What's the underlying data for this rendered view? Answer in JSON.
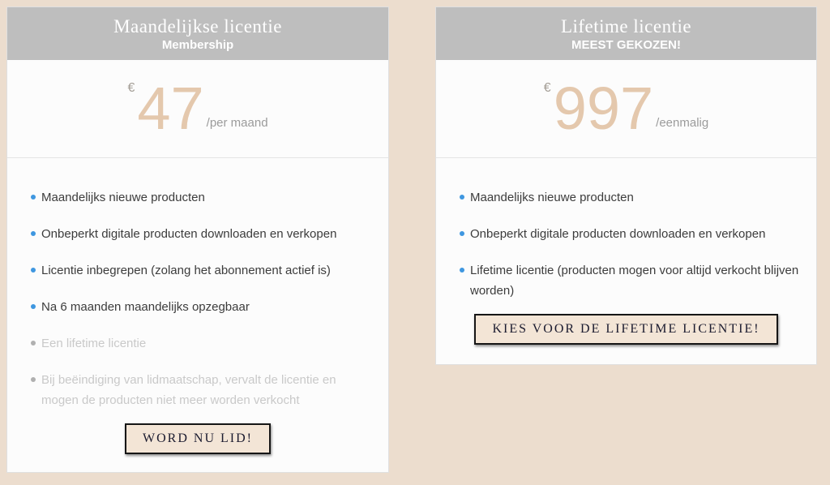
{
  "colors": {
    "page_background": "#ecddce",
    "card_background": "#fcfcfc",
    "header_background": "#bebebe",
    "header_text": "#ffffff",
    "price_accent": "#e4c8ad",
    "period_text": "#9b9b9b",
    "bullet_blue": "#3f97e0",
    "feature_text": "#3c3c3c",
    "disabled_text": "#c9c9c9",
    "button_background": "#f3e5d6",
    "button_border": "#161616",
    "button_text": "#1b1b2f"
  },
  "plans": [
    {
      "id": "monthly",
      "title": "Maandelijkse licentie",
      "subtitle": "Membership",
      "currency": "€",
      "price": "47",
      "period": "/per maand",
      "features": [
        {
          "text": "Maandelijks nieuwe producten",
          "included": true
        },
        {
          "text": "Onbeperkt digitale producten downloaden en verkopen",
          "included": true
        },
        {
          "text": "Licentie inbegrepen (zolang het abonnement actief is)",
          "included": true
        },
        {
          "text": "Na 6 maanden maandelijks opzegbaar",
          "included": true
        },
        {
          "text": "Een lifetime licentie",
          "included": false
        },
        {
          "text": "Bij beëindiging van lidmaatschap, vervalt de licentie en mogen de producten niet meer worden verkocht",
          "included": false
        }
      ],
      "cta": "WORD NU LID!"
    },
    {
      "id": "lifetime",
      "title": "Lifetime licentie",
      "subtitle": "MEEST GEKOZEN!",
      "currency": "€",
      "price": "997",
      "period": "/eenmalig",
      "features": [
        {
          "text": "Maandelijks nieuwe producten",
          "included": true
        },
        {
          "text": "Onbeperkt digitale producten downloaden en verkopen",
          "included": true
        },
        {
          "text": "Lifetime licentie (producten mogen voor altijd verkocht blijven worden)",
          "included": true
        }
      ],
      "cta": "KIES VOOR DE LIFETIME LICENTIE!"
    }
  ]
}
